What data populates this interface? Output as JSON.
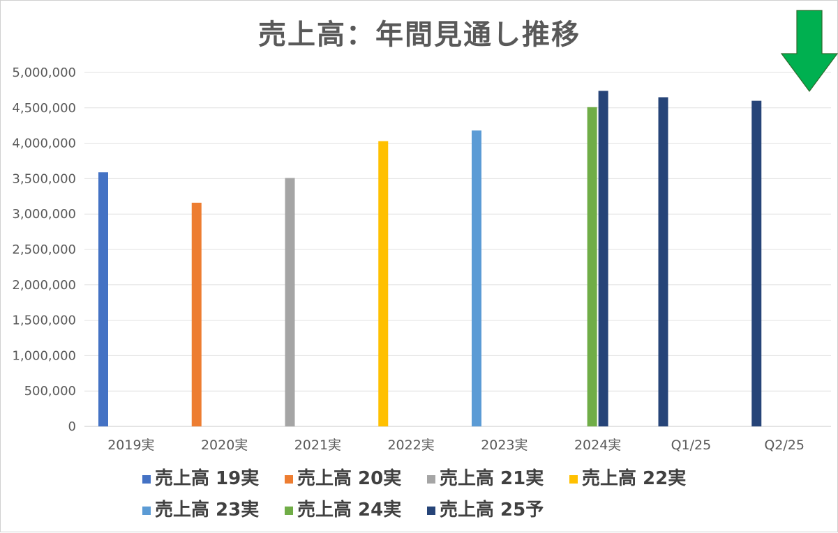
{
  "chart_data": {
    "type": "bar",
    "title": "売上高：年間見通し推移",
    "xlabel": "",
    "ylabel": "",
    "categories": [
      "2019実",
      "2020実",
      "2021実",
      "2022実",
      "2023実",
      "2024実",
      "Q1/25",
      "Q2/25"
    ],
    "ylim": [
      0,
      5000000
    ],
    "yticks": [
      "0",
      "500,000",
      "1,000,000",
      "1,500,000",
      "2,000,000",
      "2,500,000",
      "3,000,000",
      "3,500,000",
      "4,000,000",
      "4,500,000",
      "5,000,000"
    ],
    "ytick_values": [
      0,
      500000,
      1000000,
      1500000,
      2000000,
      2500000,
      3000000,
      3500000,
      4000000,
      4500000,
      5000000
    ],
    "grid": true,
    "legend_position": "bottom",
    "series": [
      {
        "name": "売上高 19実",
        "color": "#4472C4",
        "values": [
          3590000,
          null,
          null,
          null,
          null,
          null,
          null,
          null
        ]
      },
      {
        "name": "売上高 20実",
        "color": "#ED7D31",
        "values": [
          null,
          3160000,
          null,
          null,
          null,
          null,
          null,
          null
        ]
      },
      {
        "name": "売上高 21実",
        "color": "#A5A5A5",
        "values": [
          null,
          null,
          3510000,
          null,
          null,
          null,
          null,
          null
        ]
      },
      {
        "name": "売上高 22実",
        "color": "#FFC000",
        "values": [
          null,
          null,
          null,
          4030000,
          null,
          null,
          null,
          null
        ]
      },
      {
        "name": "売上高 23実",
        "color": "#5B9BD5",
        "values": [
          null,
          null,
          null,
          null,
          4180000,
          null,
          null,
          null
        ]
      },
      {
        "name": "売上高 24実",
        "color": "#70AD47",
        "values": [
          null,
          null,
          null,
          null,
          null,
          4510000,
          null,
          null
        ]
      },
      {
        "name": "売上高 25予",
        "color": "#264478",
        "values": [
          null,
          null,
          null,
          null,
          null,
          4740000,
          4650000,
          4600000
        ]
      }
    ],
    "annotation": {
      "type": "arrow",
      "direction": "down",
      "color": "#00B050",
      "target_category": "Q2/25",
      "meaning": "highlight"
    }
  }
}
